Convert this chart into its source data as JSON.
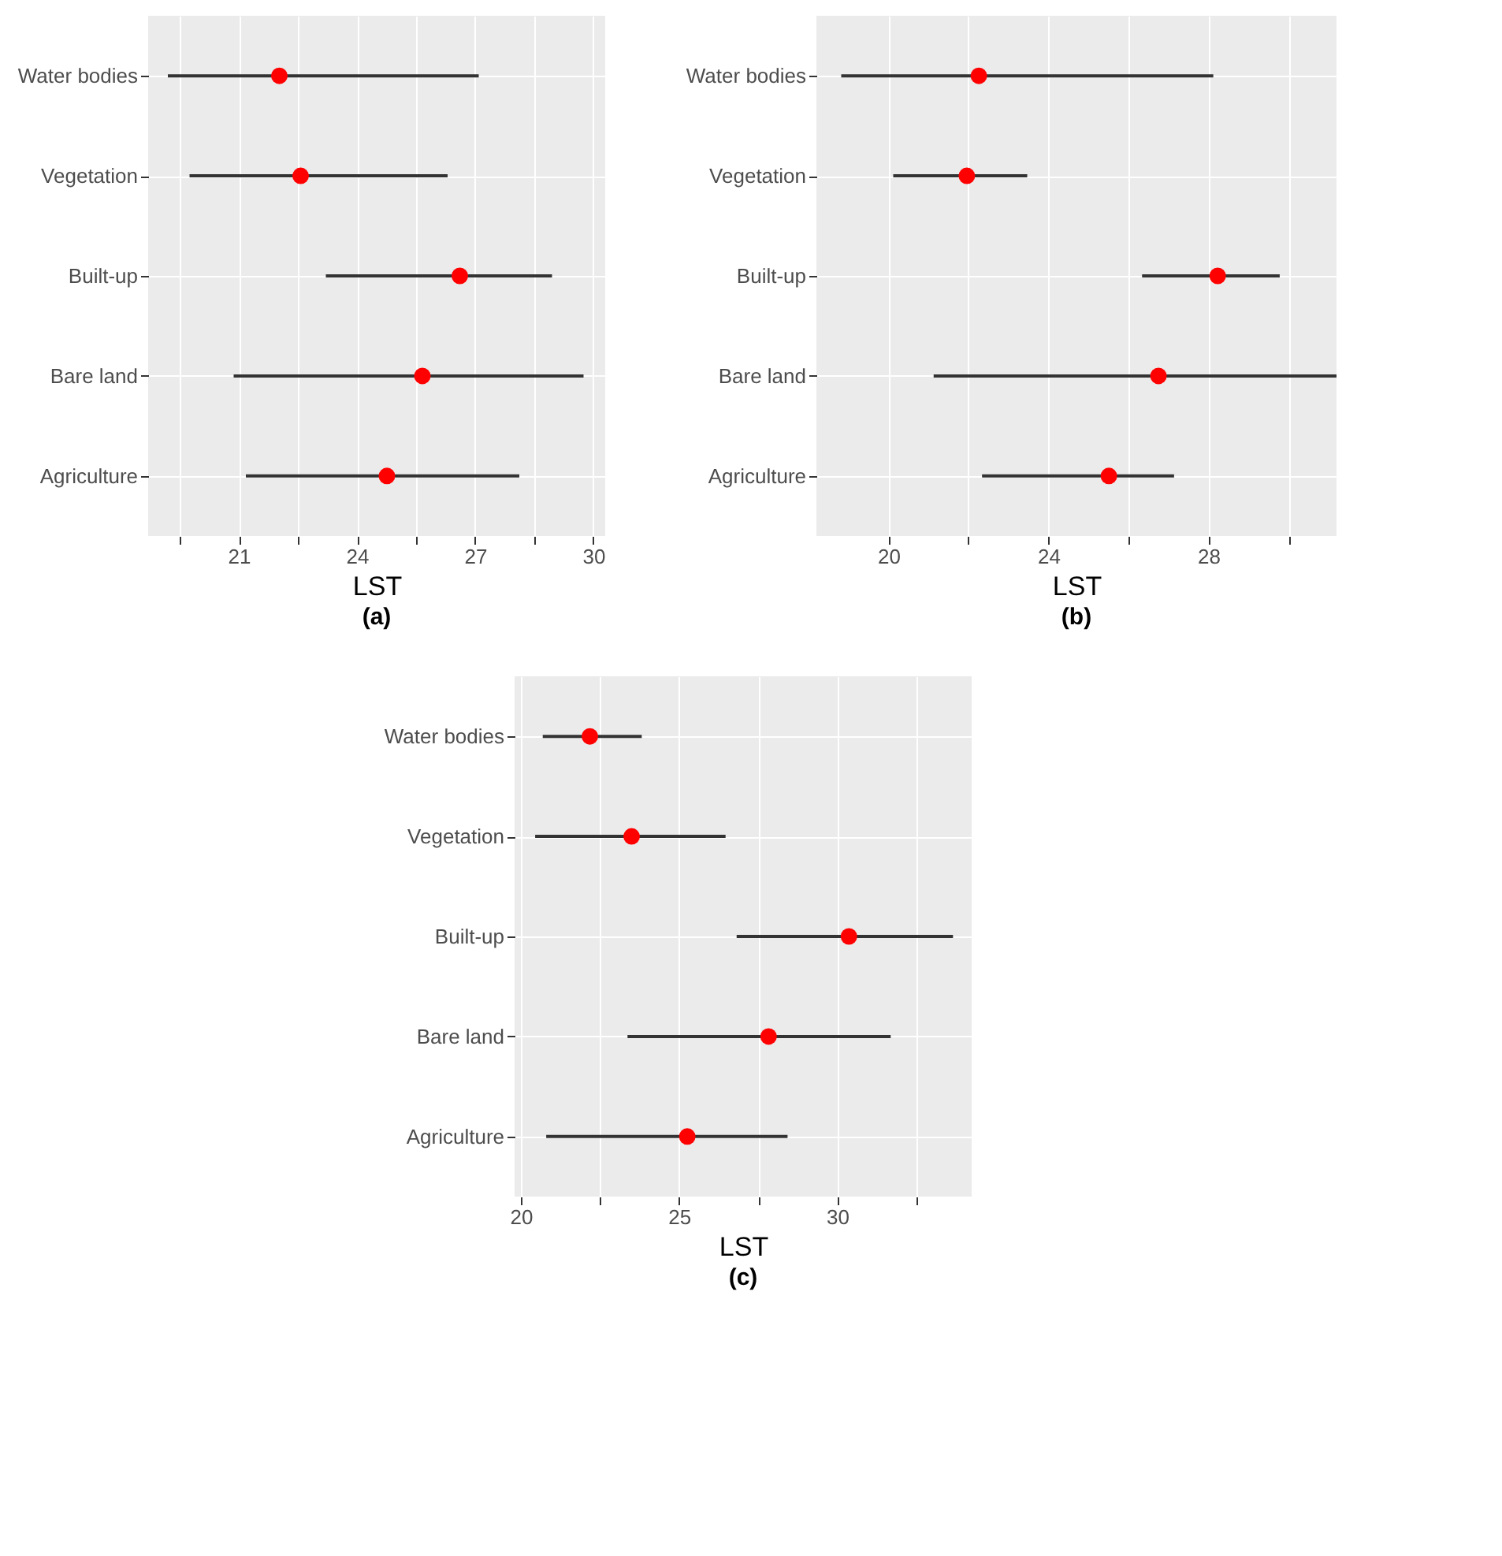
{
  "chart_data": [
    {
      "type": "scatter",
      "title": "(a)",
      "xlabel": "LST",
      "categories": [
        "Water bodies",
        "Vegetation",
        "Built-up",
        "Bare land",
        "Agriculture"
      ],
      "orientation": "horizontal",
      "color": "#ff0000",
      "marker": "circle",
      "grid": true,
      "values": [
        22.03,
        22.57,
        26.61,
        25.66,
        24.76
      ],
      "errors": [
        [
          19.2,
          27.09
        ],
        [
          19.75,
          26.3
        ],
        [
          23.21,
          28.95
        ],
        [
          20.87,
          29.75
        ],
        [
          21.18,
          28.12
        ]
      ],
      "xlim": [
        18.7,
        30.3
      ],
      "xticks": [
        {
          "value": 19.5,
          "label": null
        },
        21,
        {
          "value": 22.5,
          "label": null
        },
        24,
        {
          "value": 25.5,
          "label": null
        },
        27,
        {
          "value": 28.5,
          "label": null
        },
        30
      ]
    },
    {
      "type": "scatter",
      "title": "(b)",
      "xlabel": "LST",
      "categories": [
        "Water bodies",
        "Vegetation",
        "Built-up",
        "Bare land",
        "Agriculture"
      ],
      "orientation": "horizontal",
      "color": "#ff0000",
      "marker": "circle",
      "grid": true,
      "values": [
        22.26,
        21.96,
        28.23,
        26.75,
        25.51
      ],
      "errors": [
        [
          18.82,
          28.12
        ],
        [
          20.12,
          23.47
        ],
        [
          26.34,
          29.78
        ],
        [
          21.13,
          31.2
        ],
        [
          22.34,
          27.14
        ]
      ],
      "xlim": [
        18.2,
        31.2
      ],
      "xticks": [
        20,
        {
          "value": 22,
          "label": null
        },
        24,
        {
          "value": 26,
          "label": null
        },
        28,
        {
          "value": 30,
          "label": null
        }
      ]
    },
    {
      "type": "scatter",
      "title": "(c)",
      "xlabel": "LST",
      "categories": [
        "Water bodies",
        "Vegetation",
        "Built-up",
        "Bare land",
        "Agriculture"
      ],
      "orientation": "horizontal",
      "color": "#ff0000",
      "marker": "circle",
      "grid": true,
      "values": [
        22.18,
        23.5,
        30.37,
        27.83,
        25.26
      ],
      "errors": [
        [
          20.69,
          23.82
        ],
        [
          20.45,
          26.47
        ],
        [
          26.82,
          33.66
        ],
        [
          23.37,
          31.69
        ],
        [
          20.8,
          28.43
        ]
      ],
      "xlim": [
        19.8,
        34.25
      ],
      "xticks": [
        20,
        {
          "value": 22.5,
          "label": null
        },
        25,
        {
          "value": 27.5,
          "label": null
        },
        30,
        {
          "value": 32.5,
          "label": null
        }
      ]
    }
  ]
}
